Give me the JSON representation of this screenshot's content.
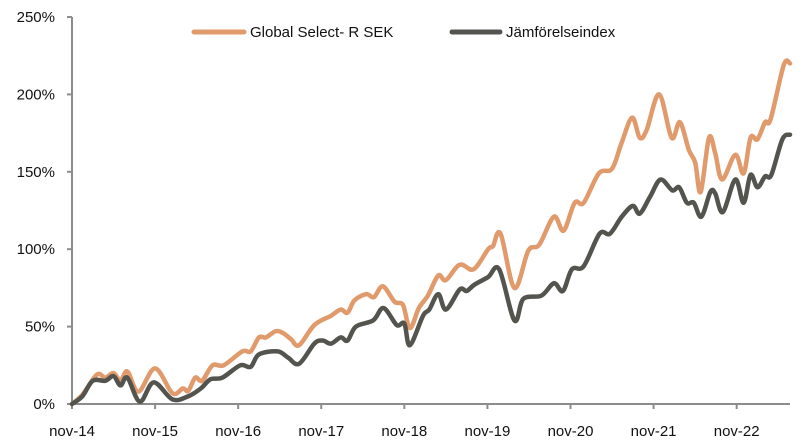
{
  "chart_data": {
    "type": "line",
    "title": "",
    "xlabel": "",
    "ylabel": "",
    "x_unit": "months since nov-14",
    "xlim": [
      0,
      103.7
    ],
    "ylim": [
      0,
      250
    ],
    "grid": false,
    "legend_placement": "top-center",
    "y_ticks": [
      0,
      50,
      100,
      150,
      200,
      250
    ],
    "y_tick_labels": [
      "0%",
      "50%",
      "100%",
      "150%",
      "200%",
      "250%"
    ],
    "x_ticks": [
      0,
      12,
      24,
      36,
      48,
      60,
      72,
      84,
      96
    ],
    "x_tick_labels": [
      "nov-14",
      "nov-15",
      "nov-16",
      "nov-17",
      "nov-18",
      "nov-19",
      "nov-20",
      "nov-21",
      "nov-22"
    ],
    "series": [
      {
        "name": "Global Select- R SEK",
        "color": "#E09A6C",
        "points": [
          [
            0,
            0
          ],
          [
            1.5,
            6
          ],
          [
            3.6,
            19
          ],
          [
            4.8,
            17
          ],
          [
            6,
            20
          ],
          [
            7,
            15
          ],
          [
            8,
            21
          ],
          [
            9.6,
            8
          ],
          [
            12,
            23
          ],
          [
            14.5,
            7
          ],
          [
            16,
            10
          ],
          [
            16.8,
            8.5
          ],
          [
            17.8,
            17
          ],
          [
            18.8,
            15
          ],
          [
            20.3,
            25
          ],
          [
            21.9,
            25
          ],
          [
            24.6,
            34
          ],
          [
            25.8,
            34
          ],
          [
            27,
            43
          ],
          [
            28,
            43
          ],
          [
            29.4,
            47
          ],
          [
            30.4,
            46
          ],
          [
            31.6,
            42
          ],
          [
            32.8,
            38
          ],
          [
            35,
            51
          ],
          [
            37.4,
            57
          ],
          [
            38.8,
            61
          ],
          [
            39.8,
            59
          ],
          [
            40.8,
            67
          ],
          [
            42.5,
            71
          ],
          [
            43.6,
            69
          ],
          [
            44.9,
            76
          ],
          [
            46.6,
            66
          ],
          [
            47.8,
            64
          ],
          [
            48.8,
            49
          ],
          [
            50.1,
            62
          ],
          [
            51.4,
            70
          ],
          [
            52.9,
            83
          ],
          [
            54,
            80
          ],
          [
            56,
            90
          ],
          [
            58,
            87
          ],
          [
            60.1,
            100
          ],
          [
            60.8,
            102
          ],
          [
            61.9,
            110
          ],
          [
            63.9,
            75
          ],
          [
            65.9,
            99
          ],
          [
            67.5,
            103
          ],
          [
            69.6,
            121
          ],
          [
            71,
            112
          ],
          [
            72.6,
            130
          ],
          [
            73.9,
            130
          ],
          [
            76.1,
            149
          ],
          [
            78,
            152
          ],
          [
            79.4,
            169
          ],
          [
            80.9,
            185
          ],
          [
            82,
            172
          ],
          [
            83,
            177
          ],
          [
            84.8,
            200
          ],
          [
            86.6,
            172
          ],
          [
            87.8,
            182
          ],
          [
            89.1,
            164
          ],
          [
            90,
            156
          ],
          [
            90.8,
            137
          ],
          [
            92,
            172
          ],
          [
            92.9,
            162
          ],
          [
            93.9,
            145
          ],
          [
            95.8,
            161
          ],
          [
            97,
            149
          ],
          [
            98,
            172
          ],
          [
            99,
            171
          ],
          [
            100.1,
            182
          ],
          [
            100.9,
            184
          ],
          [
            102.8,
            219
          ],
          [
            103.7,
            220
          ]
        ]
      },
      {
        "name": "Jämförelseindex",
        "color": "#54544F",
        "points": [
          [
            0,
            0
          ],
          [
            1.5,
            5
          ],
          [
            3,
            15
          ],
          [
            4.8,
            15
          ],
          [
            6,
            18
          ],
          [
            7,
            12
          ],
          [
            8,
            17
          ],
          [
            9.8,
            1.5
          ],
          [
            11.8,
            14
          ],
          [
            14.5,
            3
          ],
          [
            16.8,
            5
          ],
          [
            18.6,
            10
          ],
          [
            20,
            16
          ],
          [
            21.7,
            17
          ],
          [
            24.3,
            25
          ],
          [
            25.8,
            24
          ],
          [
            27,
            32
          ],
          [
            29.7,
            34
          ],
          [
            31.2,
            30
          ],
          [
            32.8,
            26
          ],
          [
            35,
            39
          ],
          [
            36.2,
            41
          ],
          [
            37.4,
            39
          ],
          [
            38.8,
            43
          ],
          [
            39.8,
            41
          ],
          [
            41,
            50
          ],
          [
            43.5,
            54
          ],
          [
            45,
            62
          ],
          [
            46.9,
            51
          ],
          [
            48,
            52
          ],
          [
            48.8,
            38
          ],
          [
            50.7,
            57
          ],
          [
            51.6,
            61
          ],
          [
            52.9,
            71
          ],
          [
            54,
            61
          ],
          [
            56,
            74
          ],
          [
            57,
            73
          ],
          [
            58.1,
            77
          ],
          [
            60.1,
            82
          ],
          [
            61.7,
            87
          ],
          [
            63.9,
            54
          ],
          [
            65.2,
            68
          ],
          [
            67.8,
            70
          ],
          [
            69.6,
            78
          ],
          [
            70.9,
            73
          ],
          [
            72.2,
            87
          ],
          [
            73.9,
            89
          ],
          [
            76.2,
            110
          ],
          [
            77.7,
            110
          ],
          [
            79.4,
            121
          ],
          [
            81,
            128
          ],
          [
            82,
            123
          ],
          [
            83.5,
            134
          ],
          [
            85,
            145
          ],
          [
            86.7,
            138
          ],
          [
            87.7,
            140
          ],
          [
            88.8,
            130
          ],
          [
            89.8,
            130
          ],
          [
            90.9,
            121
          ],
          [
            92.2,
            137
          ],
          [
            92.9,
            136
          ],
          [
            94,
            124
          ],
          [
            95.8,
            145
          ],
          [
            97,
            130
          ],
          [
            98,
            148
          ],
          [
            99,
            140
          ],
          [
            100.1,
            147
          ],
          [
            101,
            148
          ],
          [
            102.6,
            171
          ],
          [
            103.7,
            174
          ]
        ]
      }
    ]
  }
}
